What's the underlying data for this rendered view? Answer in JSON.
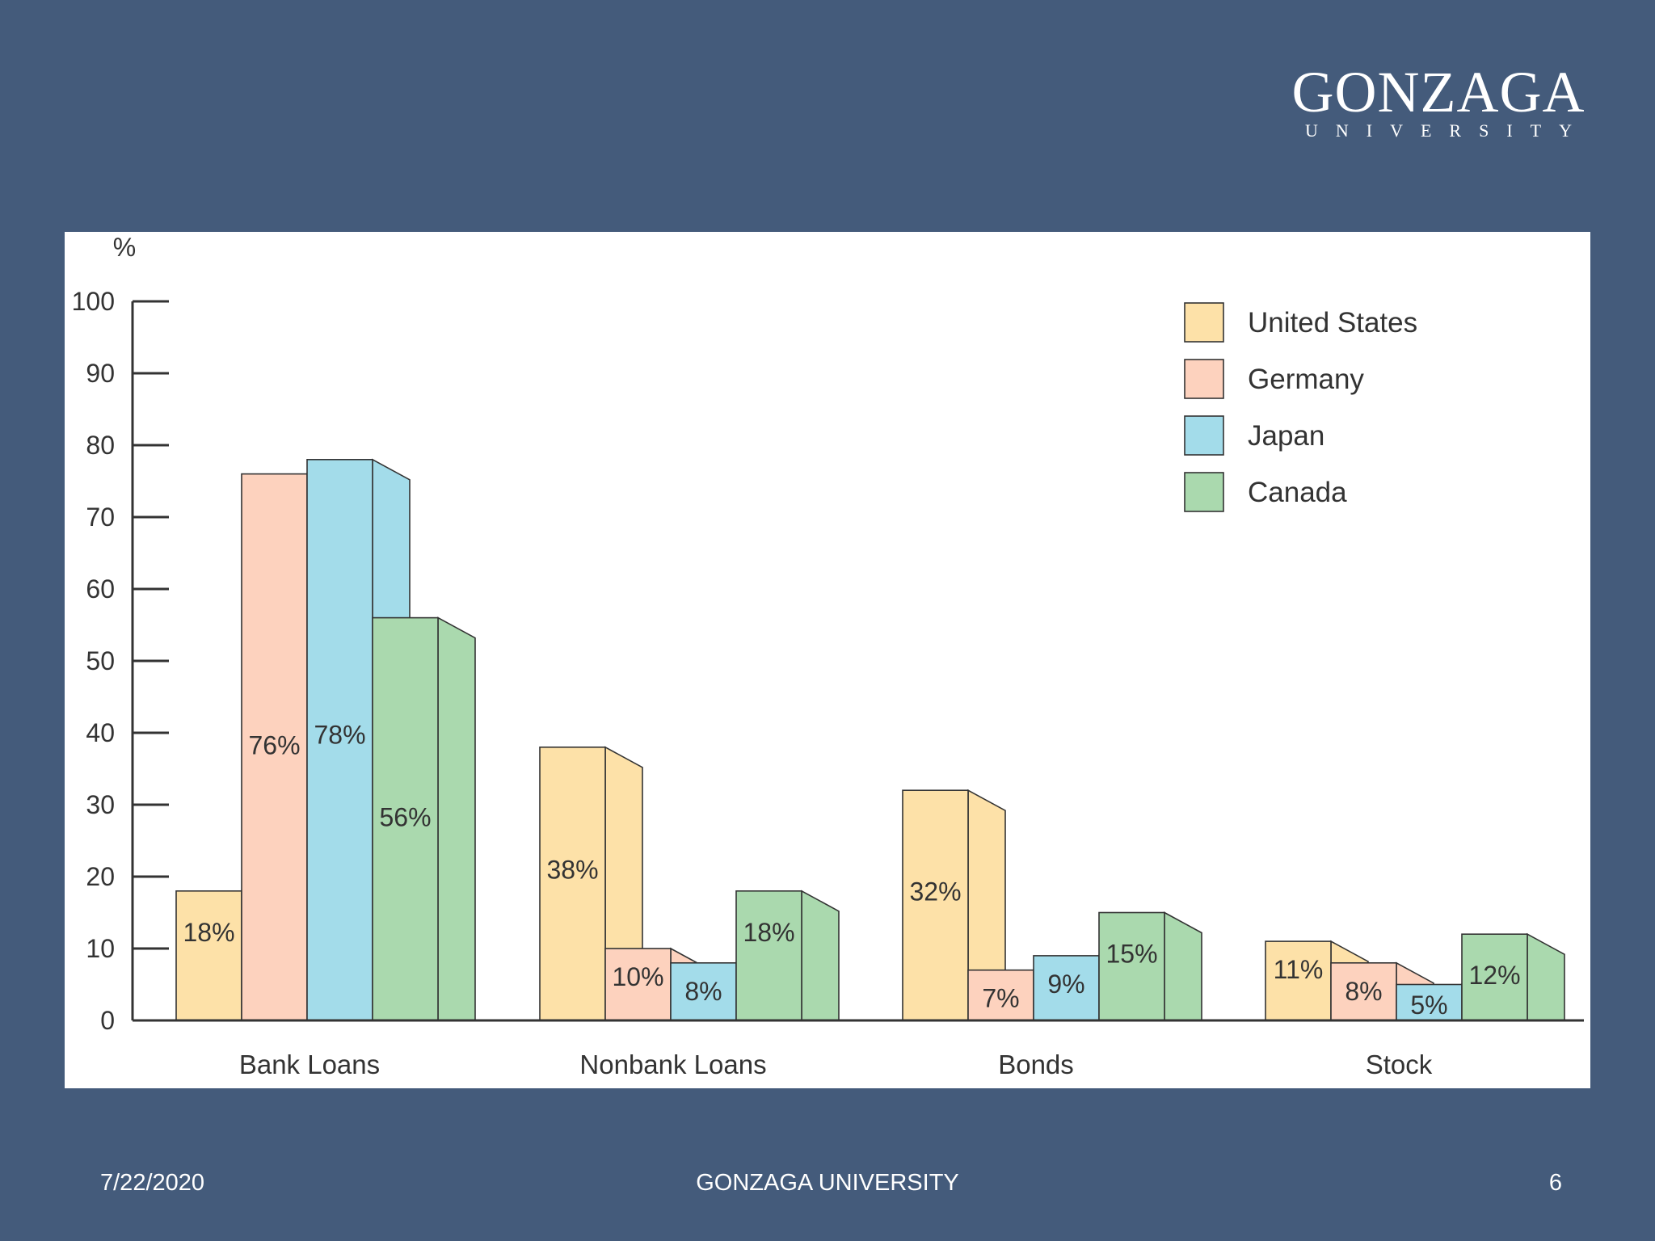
{
  "header": {
    "logo_main": "GONZAGA",
    "logo_sub": "UNIVERSITY"
  },
  "footer": {
    "date": "7/22/2020",
    "center": "GONZAGA UNIVERSITY",
    "page": "6"
  },
  "chart_data": {
    "type": "bar",
    "title": "",
    "xlabel": "",
    "ylabel": "%",
    "ylim": [
      0,
      100
    ],
    "yticks": [
      0,
      10,
      20,
      30,
      40,
      50,
      60,
      70,
      80,
      90,
      100
    ],
    "categories": [
      "Bank Loans",
      "Nonbank Loans",
      "Bonds",
      "Stock"
    ],
    "series": [
      {
        "name": "United States",
        "color": "#fde1a8",
        "values": [
          18,
          38,
          32,
          11
        ],
        "labels": [
          "18%",
          "38%",
          "32%",
          "11%"
        ]
      },
      {
        "name": "Germany",
        "color": "#fdd2be",
        "values": [
          76,
          10,
          7,
          8
        ],
        "labels": [
          "76%",
          "10%",
          "7%",
          "8%"
        ]
      },
      {
        "name": "Japan",
        "color": "#a3dcea",
        "values": [
          78,
          8,
          9,
          5
        ],
        "labels": [
          "78%",
          "8%",
          "9%",
          "5%"
        ]
      },
      {
        "name": "Canada",
        "color": "#aad9ae",
        "values": [
          56,
          18,
          15,
          12
        ],
        "labels": [
          "56%",
          "18%",
          "15%",
          "12%"
        ]
      }
    ],
    "legend": "top-right",
    "grid": false
  }
}
